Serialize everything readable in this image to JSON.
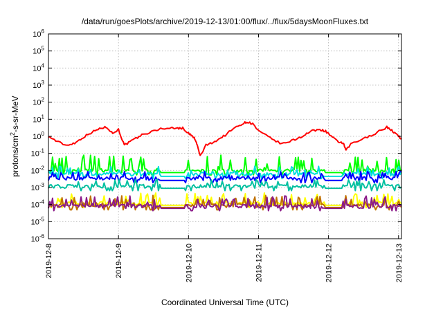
{
  "chart_data": {
    "type": "line",
    "title": "/data/run/goesPlots/archive/2019-12-13/01:00/flux/../flux/5daysMoonFluxes.txt",
    "xlabel": "Coordinated Universal Time (UTC)",
    "ylabel": "protons/cm2-s-sr-MeV",
    "ylabel_parts": {
      "base": "protons/cm",
      "sup": "2",
      "rest": "-s-sr-MeV"
    },
    "y_scale": "log",
    "ylim": [
      1e-06,
      1000000.0
    ],
    "y_ticks": [
      {
        "value": 1e-06,
        "base": "10",
        "exp": "-6"
      },
      {
        "value": 1e-05,
        "base": "10",
        "exp": "-5"
      },
      {
        "value": 0.0001,
        "base": "10",
        "exp": "-4"
      },
      {
        "value": 0.001,
        "base": "10",
        "exp": "-3"
      },
      {
        "value": 0.01,
        "base": "10",
        "exp": "-2"
      },
      {
        "value": 0.1,
        "base": "10",
        "exp": "-1"
      },
      {
        "value": 1,
        "base": "10",
        "exp": "0"
      },
      {
        "value": 10,
        "base": "10",
        "exp": "1"
      },
      {
        "value": 100,
        "base": "10",
        "exp": "2"
      },
      {
        "value": 1000,
        "base": "10",
        "exp": "3"
      },
      {
        "value": 10000,
        "base": "10",
        "exp": "4"
      },
      {
        "value": 100000,
        "base": "10",
        "exp": "5"
      },
      {
        "value": 1000000,
        "base": "10",
        "exp": "6"
      }
    ],
    "xlim": [
      "2019-12-08",
      "2019-12-13 01:00"
    ],
    "x_ticks": [
      {
        "value": "2019-12-08",
        "label": "2019-12-8"
      },
      {
        "value": "2019-12-09",
        "label": "2019-12-9"
      },
      {
        "value": "2019-12-10",
        "label": "2019-12-10"
      },
      {
        "value": "2019-12-11",
        "label": "2019-12-11"
      },
      {
        "value": "2019-12-12",
        "label": "2019-12-12"
      },
      {
        "value": "2019-12-13",
        "label": "2019-12-13"
      }
    ],
    "grid": true,
    "legend": "none",
    "series": [
      {
        "color": "#ff0000",
        "style": "smooth",
        "anchors": [
          [
            "2019-12-08 00:00",
            1.0
          ],
          [
            "2019-12-08 03:00",
            0.5
          ],
          [
            "2019-12-08 06:00",
            0.3
          ],
          [
            "2019-12-08 09:00",
            0.4
          ],
          [
            "2019-12-08 12:00",
            0.9
          ],
          [
            "2019-12-08 15:00",
            1.8
          ],
          [
            "2019-12-08 18:00",
            3.0
          ],
          [
            "2019-12-08 20:00",
            3.5
          ],
          [
            "2019-12-08 22:00",
            1.5
          ],
          [
            "2019-12-09 00:00",
            2.5
          ],
          [
            "2019-12-09 02:00",
            0.3
          ],
          [
            "2019-12-09 05:00",
            0.6
          ],
          [
            "2019-12-09 08:00",
            1.2
          ],
          [
            "2019-12-09 12:00",
            2.0
          ],
          [
            "2019-12-09 15:00",
            3.0
          ],
          [
            "2019-12-09 20:00",
            3.0
          ],
          [
            "2019-12-09 22:00",
            3.0
          ],
          [
            "2019-12-10 00:00",
            1.5
          ],
          [
            "2019-12-10 02:00",
            0.8
          ],
          [
            "2019-12-10 03:00",
            0.3
          ],
          [
            "2019-12-10 04:00",
            0.07
          ],
          [
            "2019-12-10 06:00",
            0.3
          ],
          [
            "2019-12-10 09:00",
            0.5
          ],
          [
            "2019-12-10 12:00",
            1.0
          ],
          [
            "2019-12-10 15:00",
            2.5
          ],
          [
            "2019-12-10 18:00",
            5.0
          ],
          [
            "2019-12-10 20:00",
            7.0
          ],
          [
            "2019-12-10 22:00",
            5.5
          ],
          [
            "2019-12-11 00:00",
            2.0
          ],
          [
            "2019-12-11 04:00",
            0.8
          ],
          [
            "2019-12-11 08:00",
            0.35
          ],
          [
            "2019-12-11 12:00",
            0.6
          ],
          [
            "2019-12-11 15:00",
            1.0
          ],
          [
            "2019-12-11 18:00",
            2.0
          ],
          [
            "2019-12-11 21:00",
            2.5
          ],
          [
            "2019-12-11 23:00",
            2.0
          ],
          [
            "2019-12-12 01:00",
            1.0
          ],
          [
            "2019-12-12 03:00",
            0.5
          ],
          [
            "2019-12-12 05:00",
            0.4
          ],
          [
            "2019-12-12 06:00",
            0.15
          ],
          [
            "2019-12-12 08:00",
            0.4
          ],
          [
            "2019-12-12 12:00",
            0.7
          ],
          [
            "2019-12-12 16:00",
            1.5
          ],
          [
            "2019-12-12 20:00",
            3.5
          ],
          [
            "2019-12-12 22:00",
            2.0
          ],
          [
            "2019-12-13 00:00",
            1.0
          ],
          [
            "2019-12-13 01:00",
            0.7
          ]
        ]
      },
      {
        "color": "#00ff00",
        "style": "spiky",
        "base": 0.01,
        "spike": 8,
        "seed": 11
      },
      {
        "color": "#00dddd",
        "style": "spiky",
        "base": 0.006,
        "spike": 3,
        "seed": 23
      },
      {
        "color": "#0000ff",
        "style": "spiky",
        "base": 0.0035,
        "spike": 2.5,
        "seed": 37
      },
      {
        "color": "#00c0a0",
        "style": "spiky",
        "base": 0.0012,
        "spike": 2.5,
        "seed": 41
      },
      {
        "color": "#ffff00",
        "style": "spiky",
        "base": 0.00012,
        "spike": 4,
        "seed": 53
      },
      {
        "color": "#c07000",
        "style": "spiky",
        "base": 9e-05,
        "spike": 4,
        "seed": 67
      },
      {
        "color": "#8b1a89",
        "style": "spiky",
        "base": 8e-05,
        "spike": 4,
        "seed": 79
      }
    ]
  }
}
